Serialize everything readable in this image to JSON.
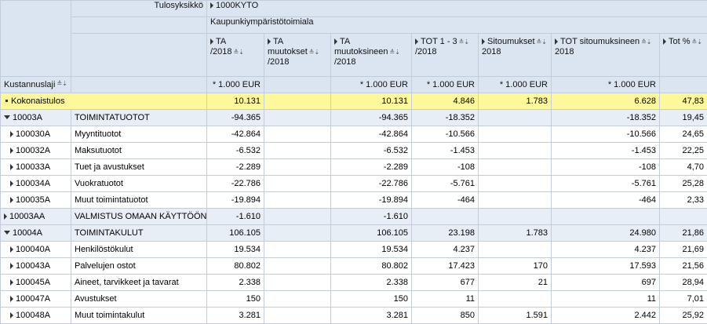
{
  "header": {
    "tulosyksikko_label": "Tulosyksikkö",
    "tulosyksikko_value": "1000KYTO",
    "toimiala": "Kaupunkiympäristötoimiala",
    "kustannuslaji_label": "Kustannuslaji",
    "columns": [
      {
        "l1": "TA",
        "l2": "/2018"
      },
      {
        "l1": "TA",
        "l2": "muutokset",
        "l3": "/2018"
      },
      {
        "l1": "TA",
        "l2": "muutoksineen",
        "l3": "/2018"
      },
      {
        "l1": "TOT 1 - 3",
        "l2": "/2018"
      },
      {
        "l1": "Sitoumukset",
        "l2": "2018"
      },
      {
        "l1": "TOT sitoumuksineen",
        "l2": "2018"
      },
      {
        "l1": "Tot %"
      }
    ],
    "unit": "* 1.000 EUR"
  },
  "rows": [
    {
      "code": "Kokonaistulos",
      "name": "",
      "ta": "10.131",
      "tam": "",
      "tamu": "10.131",
      "tot": "4.846",
      "sit": "1.783",
      "totsit": "6.628",
      "pct": "47,83"
    },
    {
      "code": "10003A",
      "name": "TOIMINTATUOTOT",
      "ta": "-94.365",
      "tam": "",
      "tamu": "-94.365",
      "tot": "-18.352",
      "sit": "",
      "totsit": "-18.352",
      "pct": "19,45"
    },
    {
      "code": "100030A",
      "name": "Myyntituotot",
      "ta": "-42.864",
      "tam": "",
      "tamu": "-42.864",
      "tot": "-10.566",
      "sit": "",
      "totsit": "-10.566",
      "pct": "24,65"
    },
    {
      "code": "100032A",
      "name": "Maksutuotot",
      "ta": "-6.532",
      "tam": "",
      "tamu": "-6.532",
      "tot": "-1.453",
      "sit": "",
      "totsit": "-1.453",
      "pct": "22,25"
    },
    {
      "code": "100033A",
      "name": "Tuet ja avustukset",
      "ta": "-2.289",
      "tam": "",
      "tamu": "-2.289",
      "tot": "-108",
      "sit": "",
      "totsit": "-108",
      "pct": "4,70"
    },
    {
      "code": "100034A",
      "name": "Vuokratuotot",
      "ta": "-22.786",
      "tam": "",
      "tamu": "-22.786",
      "tot": "-5.761",
      "sit": "",
      "totsit": "-5.761",
      "pct": "25,28"
    },
    {
      "code": "100035A",
      "name": "Muut toimintatuotot",
      "ta": "-19.894",
      "tam": "",
      "tamu": "-19.894",
      "tot": "-464",
      "sit": "",
      "totsit": "-464",
      "pct": "2,33"
    },
    {
      "code": "10003AA",
      "name": "VALMISTUS OMAAN KÄYTTÖÖN",
      "ta": "-1.610",
      "tam": "",
      "tamu": "-1.610",
      "tot": "",
      "sit": "",
      "totsit": "",
      "pct": ""
    },
    {
      "code": "10004A",
      "name": "TOIMINTAKULUT",
      "ta": "106.105",
      "tam": "",
      "tamu": "106.105",
      "tot": "23.198",
      "sit": "1.783",
      "totsit": "24.980",
      "pct": "21,86"
    },
    {
      "code": "100040A",
      "name": "Henkilöstökulut",
      "ta": "19.534",
      "tam": "",
      "tamu": "19.534",
      "tot": "4.237",
      "sit": "",
      "totsit": "4.237",
      "pct": "21,69"
    },
    {
      "code": "100043A",
      "name": "Palvelujen ostot",
      "ta": "80.802",
      "tam": "",
      "tamu": "80.802",
      "tot": "17.423",
      "sit": "170",
      "totsit": "17.593",
      "pct": "21,56"
    },
    {
      "code": "100045A",
      "name": "Aineet, tarvikkeet ja tavarat",
      "ta": "2.338",
      "tam": "",
      "tamu": "2.338",
      "tot": "677",
      "sit": "21",
      "totsit": "697",
      "pct": "28,94"
    },
    {
      "code": "100047A",
      "name": "Avustukset",
      "ta": "150",
      "tam": "",
      "tamu": "150",
      "tot": "11",
      "sit": "",
      "totsit": "11",
      "pct": "7,01"
    },
    {
      "code": "100048A",
      "name": "Muut toimintakulut",
      "ta": "3.281",
      "tam": "",
      "tamu": "3.281",
      "tot": "850",
      "sit": "1.591",
      "totsit": "2.442",
      "pct": "25,92"
    }
  ]
}
